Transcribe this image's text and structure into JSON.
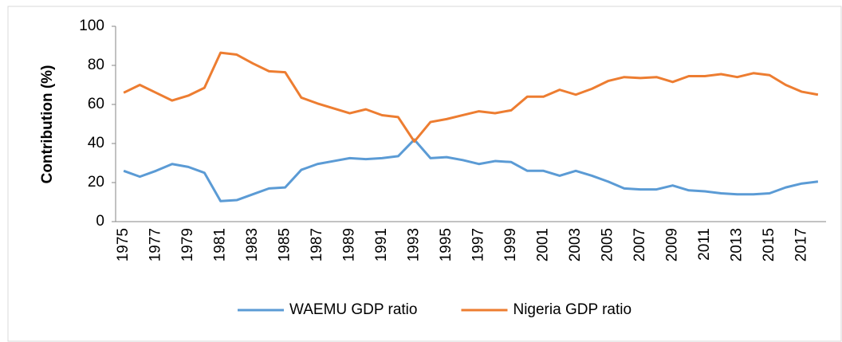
{
  "chart_data": {
    "type": "line",
    "y_label": "Contribution (%)",
    "categories": [
      "1975",
      null,
      "1977",
      null,
      "1979",
      null,
      "1981",
      null,
      "1983",
      null,
      "1985",
      null,
      "1987",
      null,
      "1989",
      null,
      "1991",
      null,
      "1993",
      null,
      "1995",
      null,
      "1997",
      null,
      "1999",
      null,
      "2001",
      null,
      "2003",
      null,
      "2005",
      null,
      "2007",
      null,
      "2009",
      null,
      "2011",
      null,
      "2013",
      null,
      "2015",
      null,
      "2017",
      null
    ],
    "series": [
      {
        "name": "WAEMU GDP ratio",
        "color": "#5b9bd5",
        "values": [
          26,
          23,
          26,
          29.5,
          28,
          25,
          10.5,
          11,
          14,
          17,
          17.5,
          26.5,
          29.5,
          31,
          32.5,
          32,
          32.5,
          33.5,
          42,
          32.5,
          33,
          31.5,
          29.5,
          31,
          30.5,
          26,
          26,
          23.5,
          26,
          23.5,
          20.5,
          17,
          16.5,
          16.5,
          18.5,
          16,
          15.5,
          14.5,
          14,
          14,
          14.5,
          17.5,
          19.5,
          20.5
        ]
      },
      {
        "name": "Nigeria GDP ratio",
        "color": "#ed7d31",
        "values": [
          66,
          70,
          66,
          62,
          64.5,
          68.5,
          86.5,
          85.5,
          81,
          77,
          76.5,
          63.5,
          60.5,
          58,
          55.5,
          57.5,
          54.5,
          53.5,
          41,
          51,
          52.5,
          54.5,
          56.5,
          55.5,
          57,
          64,
          64,
          67.5,
          65,
          68,
          72,
          74,
          73.5,
          74,
          71.5,
          74.5,
          74.5,
          75.5,
          74,
          76,
          75,
          70,
          66.5,
          65
        ]
      }
    ],
    "ylim": [
      0,
      100
    ],
    "yticks": [
      0,
      20,
      40,
      60,
      80,
      100
    ],
    "grid": false,
    "legend": "bottom"
  }
}
